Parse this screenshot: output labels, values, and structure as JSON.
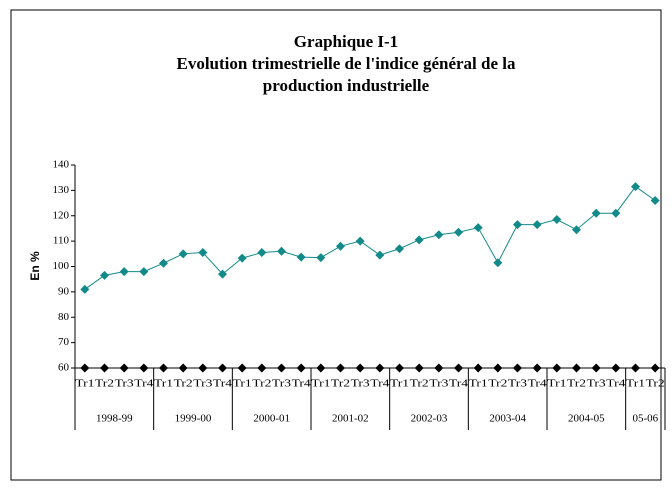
{
  "chart_data": {
    "type": "line",
    "title": [
      "Graphique I-1",
      "Evolution trimestrielle de l'indice général de la",
      "production industrielle"
    ],
    "ylabel": "En %",
    "groups": [
      {
        "label": "1998-99",
        "categories": [
          "Tr1",
          "Tr2",
          "Tr3",
          "Tr4"
        ]
      },
      {
        "label": "1999-00",
        "categories": [
          "Tr1",
          "Tr2",
          "Tr3",
          "Tr4"
        ]
      },
      {
        "label": "2000-01",
        "categories": [
          "Tr1",
          "Tr2",
          "Tr3",
          "Tr4"
        ]
      },
      {
        "label": "2001-02",
        "categories": [
          "Tr1",
          "Tr2",
          "Tr3",
          "Tr4"
        ]
      },
      {
        "label": "2002-03",
        "categories": [
          "Tr1",
          "Tr2",
          "Tr3",
          "Tr4"
        ]
      },
      {
        "label": "2003-04",
        "categories": [
          "Tr1",
          "Tr2",
          "Tr3",
          "Tr4"
        ]
      },
      {
        "label": "2004-05",
        "categories": [
          "Tr1",
          "Tr2",
          "Tr3",
          "Tr4"
        ]
      },
      {
        "label": "05-06",
        "categories": [
          "Tr1",
          "Tr2"
        ]
      }
    ],
    "series": [
      {
        "color": "#138a8a",
        "values": [
          91,
          96.5,
          98,
          98,
          101.3,
          105,
          105.5,
          97,
          103.3,
          105.5,
          106,
          103.7,
          103.5,
          108,
          110,
          104.5,
          107,
          110.5,
          112.5,
          113.5,
          115.3,
          101.5,
          116.5,
          116.5,
          118.5,
          114.5,
          121,
          121,
          131.5,
          126
        ]
      },
      {
        "color": "#000000",
        "values": [
          60,
          60,
          60,
          60,
          60,
          60,
          60,
          60,
          60,
          60,
          60,
          60,
          60,
          60,
          60,
          60,
          60,
          60,
          60,
          60,
          60,
          60,
          60,
          60,
          60,
          60,
          60,
          60,
          60,
          60
        ]
      }
    ],
    "ylim": [
      60,
      140
    ],
    "yticks": [
      60,
      70,
      80,
      90,
      100,
      110,
      120,
      130,
      140
    ]
  }
}
